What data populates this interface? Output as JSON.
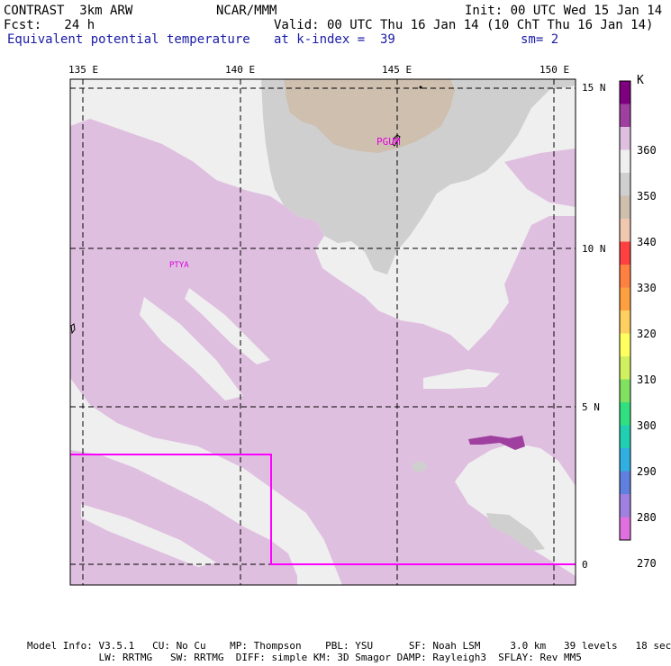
{
  "header": {
    "line1_left": "CONTRAST  3km ARW",
    "line1_mid": "NCAR/MMM",
    "line1_right": "Init: 00 UTC Wed 15 Jan 14",
    "line2_left": "Fcst:   24 h",
    "line2_right": "Valid: 00 UTC Thu 16 Jan 14 (10 ChT Thu 16 Jan 14)",
    "line3_left": "Equivalent potential temperature",
    "line3_mid": "at k-index =  39",
    "line3_right": "sm= 2"
  },
  "map": {
    "lon_labels": [
      "135 E",
      "140 E",
      "145 E",
      "150 E"
    ],
    "lat_labels": [
      "15 N",
      "10 N",
      "5 N",
      "0"
    ],
    "stations": [
      "PTYA",
      "PGUM"
    ],
    "colors": {
      "magenta_box": "#ff00ff",
      "background_field": "#efefef",
      "pink_field": "#dfbfdf",
      "gray_field": "#cfcfcf",
      "tan_field": "#cebfaf",
      "purple_field": "#9f3f9f"
    }
  },
  "colorbar": {
    "unit": "K",
    "labels": [
      "360",
      "350",
      "340",
      "330",
      "320",
      "310",
      "300",
      "290",
      "280",
      "270"
    ],
    "colors": [
      "#7f007f",
      "#9f3f9f",
      "#dfbfdf",
      "#efefef",
      "#cfcfcf",
      "#cebfaf",
      "#f0c8b0",
      "#ff4040",
      "#ff8040",
      "#ffa040",
      "#ffd060",
      "#ffff60",
      "#d0f060",
      "#80e060",
      "#30e080",
      "#20d0b0",
      "#30b0e0",
      "#6080e0",
      "#a080e0",
      "#e070e0"
    ]
  },
  "footer": {
    "line1": "Model Info: V3.5.1   CU: No Cu    MP: Thompson    PBL: YSU      SF: Noah LSM     3.0 km   39 levels   18 sec",
    "line2": "            LW: RRTMG   SW: RRTMG  DIFF: simple KM: 3D Smagor DAMP: Rayleigh3  SFLAY: Rev MM5"
  }
}
